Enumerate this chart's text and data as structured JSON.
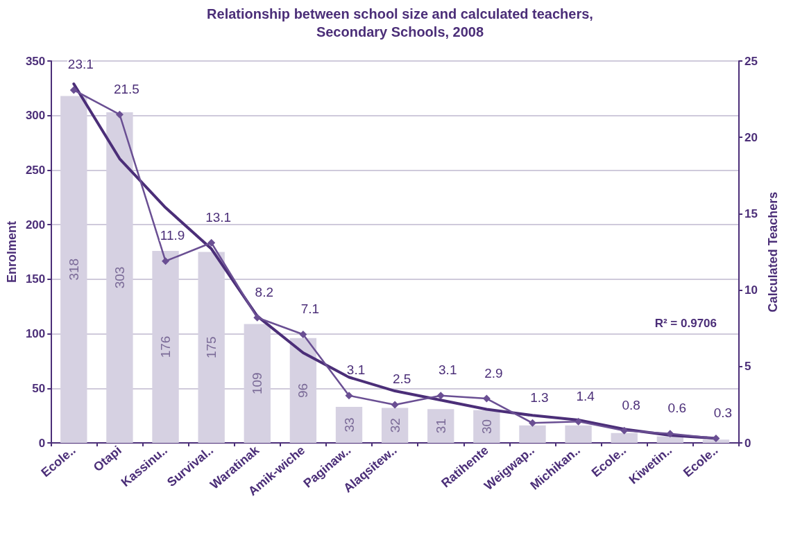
{
  "chart_data": {
    "type": "bar",
    "title": "Relationship between school size and calculated teachers,\nSecondary Schools, 2008",
    "categories": [
      "Ecole..",
      "Otapi",
      "Kassinu..",
      "Survival..",
      "Waratinak",
      "Amik-wiche",
      "Paginaw..",
      "Alaqsitew..",
      null,
      "Ratihente",
      "Weigwap..",
      "Michikan..",
      "Ecole..",
      "Kiwetin..",
      "Ecole.."
    ],
    "xlabel": null,
    "ylabel": "Enrolment",
    "y2label": "Calculated Teachers",
    "ylim": [
      0,
      350
    ],
    "yticks": [
      0,
      50,
      100,
      150,
      200,
      250,
      300,
      350
    ],
    "y2lim": [
      0,
      25
    ],
    "y2ticks": [
      0,
      5,
      10,
      15,
      20,
      25
    ],
    "grid": "y",
    "series": [
      {
        "color": "#d6d1e2",
        "values": [
          318,
          303,
          176,
          175,
          109,
          96,
          33,
          32,
          31,
          30,
          16,
          16,
          9,
          6,
          3
        ],
        "value_labels": [
          "318",
          "303",
          "176",
          "175",
          "109",
          "96",
          "33",
          "32",
          "31",
          "30",
          null,
          null,
          null,
          null,
          null
        ]
      },
      {
        "type": "line",
        "axis": "y2",
        "color": "#6a4f93",
        "marker": "diamond",
        "data_labels": true,
        "values": [
          23.1,
          21.5,
          11.9,
          13.1,
          8.2,
          7.1,
          3.1,
          2.5,
          3.1,
          2.9,
          1.3,
          1.4,
          0.8,
          0.6,
          0.3
        ]
      },
      {
        "type": "line",
        "axis": "y2",
        "color": "#4b2e78",
        "marker": "none",
        "values": [
          23.5,
          18.6,
          15.4,
          12.7,
          8.3,
          5.9,
          4.3,
          3.4,
          2.8,
          2.2,
          1.8,
          1.5,
          0.9,
          0.5,
          0.3
        ]
      }
    ],
    "annotations": [
      "R² = 0.9706"
    ]
  }
}
